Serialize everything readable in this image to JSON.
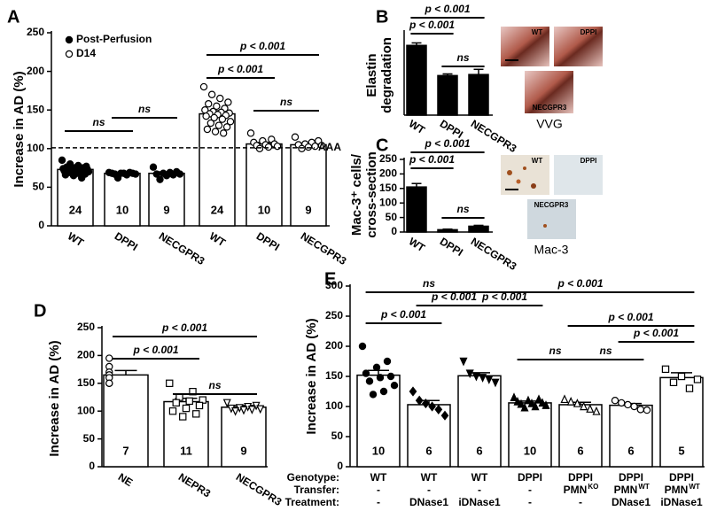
{
  "chart_data": [
    {
      "panel_label": "A",
      "type": "bar",
      "y_label": "Increase in AD (%)",
      "color": "#ffffff",
      "categories": [
        "WT",
        "DPPI",
        "NECGPR3",
        "WT",
        "DPPI",
        "NECGPR3"
      ],
      "values": [
        73,
        68,
        68,
        145,
        106,
        105
      ],
      "errors": [
        2,
        1,
        2,
        4,
        2,
        2
      ],
      "n_labels": [
        24,
        10,
        9,
        24,
        10,
        9
      ],
      "points": [
        [
          85,
          80,
          78,
          77,
          76,
          75,
          75,
          74,
          74,
          73,
          73,
          72,
          72,
          72,
          71,
          71,
          70,
          70,
          69,
          68,
          67,
          66,
          65,
          62
        ],
        [
          69,
          69,
          68,
          68,
          68,
          68,
          67,
          67,
          66,
          62
        ],
        [
          76,
          70,
          69,
          68,
          67,
          67,
          66,
          65,
          60
        ],
        [
          180,
          170,
          165,
          160,
          158,
          155,
          152,
          150,
          148,
          147,
          146,
          145,
          144,
          143,
          142,
          140,
          138,
          135,
          133,
          130,
          128,
          125,
          122,
          120
        ],
        [
          120,
          112,
          110,
          108,
          106,
          105,
          104,
          103,
          102,
          100
        ],
        [
          115,
          110,
          108,
          106,
          105,
          104,
          103,
          102,
          100
        ]
      ],
      "markers": [
        "filled-circle",
        "filled-circle",
        "filled-circle",
        "open-circle",
        "open-circle",
        "open-circle"
      ],
      "legend": [
        {
          "name": "Post-Perfusion",
          "marker": "filled-circle"
        },
        {
          "name": "D14",
          "marker": "open-circle"
        }
      ],
      "reference_line": {
        "value": 101,
        "label": "AAA"
      },
      "ylim": [
        0,
        250
      ],
      "yticks": [
        0,
        50,
        100,
        150,
        200,
        250
      ],
      "brackets": [
        {
          "from": 0,
          "to": 1,
          "label": "ns"
        },
        {
          "from": 1,
          "to": 2,
          "label": "ns"
        },
        {
          "from": 3,
          "to": 4,
          "label": "p < 0.001"
        },
        {
          "from": 3,
          "to": 5,
          "label": "p < 0.001"
        },
        {
          "from": 4,
          "to": 5,
          "label": "ns"
        }
      ]
    },
    {
      "panel_label": "B",
      "type": "bar",
      "y_label": [
        "Elastin",
        "degradation"
      ],
      "color": "#000000",
      "categories": [
        "WT",
        "DPPI",
        "NECGPR3"
      ],
      "values": [
        3.35,
        1.9,
        1.95
      ],
      "errors": [
        0.12,
        0.08,
        0.25
      ],
      "ylim": [
        0,
        4
      ],
      "brackets": [
        {
          "from": 0,
          "to": 1,
          "label": "p < 0.001"
        },
        {
          "from": 0,
          "to": 2,
          "label": "p < 0.001"
        },
        {
          "from": 1,
          "to": 2,
          "label": "ns"
        }
      ],
      "micrographs": {
        "labels": [
          "WT",
          "DPPI",
          "NECGPR3"
        ],
        "caption": "VVG"
      }
    },
    {
      "panel_label": "C",
      "type": "bar",
      "y_label": [
        "Mac-3⁺ cells/",
        "cross-section"
      ],
      "color": "#000000",
      "categories": [
        "WT",
        "DPPI",
        "NECGPR3"
      ],
      "values": [
        155,
        8,
        20
      ],
      "errors": [
        12,
        2,
        3
      ],
      "ylim": [
        0,
        250
      ],
      "yticks": [
        0,
        50,
        100,
        150,
        200,
        250
      ],
      "brackets": [
        {
          "from": 0,
          "to": 1,
          "label": "p < 0.001"
        },
        {
          "from": 0,
          "to": 2,
          "label": "p < 0.001"
        },
        {
          "from": 1,
          "to": 2,
          "label": "ns"
        }
      ],
      "micrographs": {
        "labels": [
          "WT",
          "DPPI",
          "NECGPR3"
        ],
        "caption": "Mac-3"
      }
    },
    {
      "panel_label": "D",
      "type": "bar",
      "y_label": "Increase in AD (%)",
      "color": "#ffffff",
      "categories": [
        "NE",
        "NEPR3",
        "NECGPR3"
      ],
      "values": [
        165,
        117,
        107
      ],
      "errors": [
        8,
        6,
        3
      ],
      "n_labels": [
        7,
        11,
        9
      ],
      "points": [
        [
          195,
          180,
          170,
          165,
          160,
          150,
          150
        ],
        [
          150,
          135,
          125,
          120,
          118,
          115,
          110,
          105,
          100,
          95,
          90
        ],
        [
          115,
          110,
          108,
          106,
          105,
          104,
          103,
          102,
          100
        ]
      ],
      "markers": [
        "open-circle",
        "open-square",
        "open-tri-down"
      ],
      "ylim": [
        0,
        250
      ],
      "yticks": [
        0,
        50,
        100,
        150,
        200,
        250
      ],
      "brackets": [
        {
          "from": 0,
          "to": 1,
          "label": "p < 0.001"
        },
        {
          "from": 0,
          "to": 2,
          "label": "p < 0.001"
        },
        {
          "from": 1,
          "to": 2,
          "label": "ns"
        }
      ]
    },
    {
      "panel_label": "E",
      "type": "bar",
      "y_label": "Increase in AD (%)",
      "color": "#ffffff",
      "values": [
        152,
        103,
        151,
        106,
        103,
        102,
        148
      ],
      "errors": [
        8,
        7,
        5,
        3,
        4,
        3,
        8
      ],
      "n_labels": [
        10,
        6,
        6,
        10,
        6,
        6,
        5
      ],
      "points": [
        [
          200,
          175,
          165,
          155,
          150,
          148,
          142,
          135,
          125,
          120
        ],
        [
          125,
          110,
          105,
          100,
          95,
          85
        ],
        [
          175,
          155,
          150,
          148,
          145,
          140
        ],
        [
          115,
          112,
          110,
          108,
          106,
          105,
          104,
          102,
          100,
          98
        ],
        [
          112,
          108,
          105,
          100,
          96,
          92
        ],
        [
          110,
          106,
          103,
          100,
          95,
          94
        ],
        [
          162,
          150,
          145,
          140,
          130
        ]
      ],
      "markers": [
        "filled-circle",
        "filled-diamond",
        "filled-tri-down",
        "filled-tri-up",
        "open-tri-up",
        "open-circle",
        "open-square"
      ],
      "ylim": [
        0,
        300
      ],
      "yticks": [
        0,
        50,
        100,
        150,
        200,
        250,
        300
      ],
      "brackets": [
        {
          "from": 0,
          "to": 1,
          "label": "p < 0.001"
        },
        {
          "from": 0,
          "to": 2,
          "label": "ns"
        },
        {
          "from": 1,
          "to": 2,
          "label": "p < 0.001"
        },
        {
          "from": 2,
          "to": 3,
          "label": "p < 0.001"
        },
        {
          "from": 2,
          "to": 6,
          "label": "p < 0.001"
        },
        {
          "from": 4,
          "to": 6,
          "label": "p < 0.001"
        },
        {
          "from": 5,
          "to": 6,
          "label": "p < 0.001"
        },
        {
          "from": 3,
          "to": 4,
          "label": "ns"
        },
        {
          "from": 4,
          "to": 5,
          "label": "ns"
        }
      ],
      "table": [
        {
          "label": "Genotype:",
          "cells": [
            "WT",
            "WT",
            "WT",
            "DPPI",
            "DPPI",
            "DPPI",
            "DPPI"
          ]
        },
        {
          "label": "Transfer:",
          "cells": [
            "-",
            "-",
            "-",
            "-",
            "PMN",
            "PMN",
            "PMN"
          ],
          "superscripts": [
            null,
            null,
            null,
            null,
            "KO",
            "WT",
            "WT"
          ]
        },
        {
          "label": "Treatment:",
          "cells": [
            "-",
            "DNase1",
            "iDNase1",
            "-",
            "-",
            "DNase1",
            "iDNase1"
          ]
        }
      ]
    }
  ]
}
